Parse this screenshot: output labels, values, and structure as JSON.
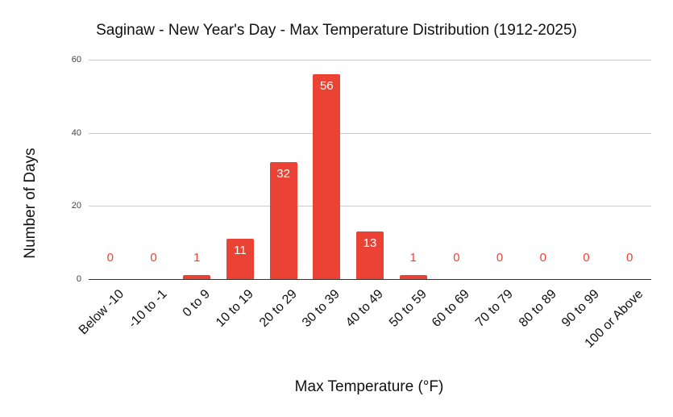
{
  "chart_data": {
    "type": "bar",
    "title": "Saginaw - New Year's Day - Max Temperature Distribution (1912-2025)",
    "xlabel": "Max Temperature (°F)",
    "ylabel": "Number of Days",
    "categories": [
      "Below -10",
      "-10 to -1",
      "0 to 9",
      "10 to 19",
      "20 to 29",
      "30 to 39",
      "40 to 49",
      "50 to 59",
      "60 to 69",
      "70 to 79",
      "80 to 89",
      "90 to 99",
      "100 or Above"
    ],
    "values": [
      0,
      0,
      1,
      11,
      32,
      56,
      13,
      1,
      0,
      0,
      0,
      0,
      0
    ],
    "ylim": [
      0,
      60
    ],
    "yticks": [
      0,
      20,
      40,
      60
    ],
    "grid": true,
    "legend": "none",
    "data_labels": true,
    "bar_color": "#ea4335"
  }
}
